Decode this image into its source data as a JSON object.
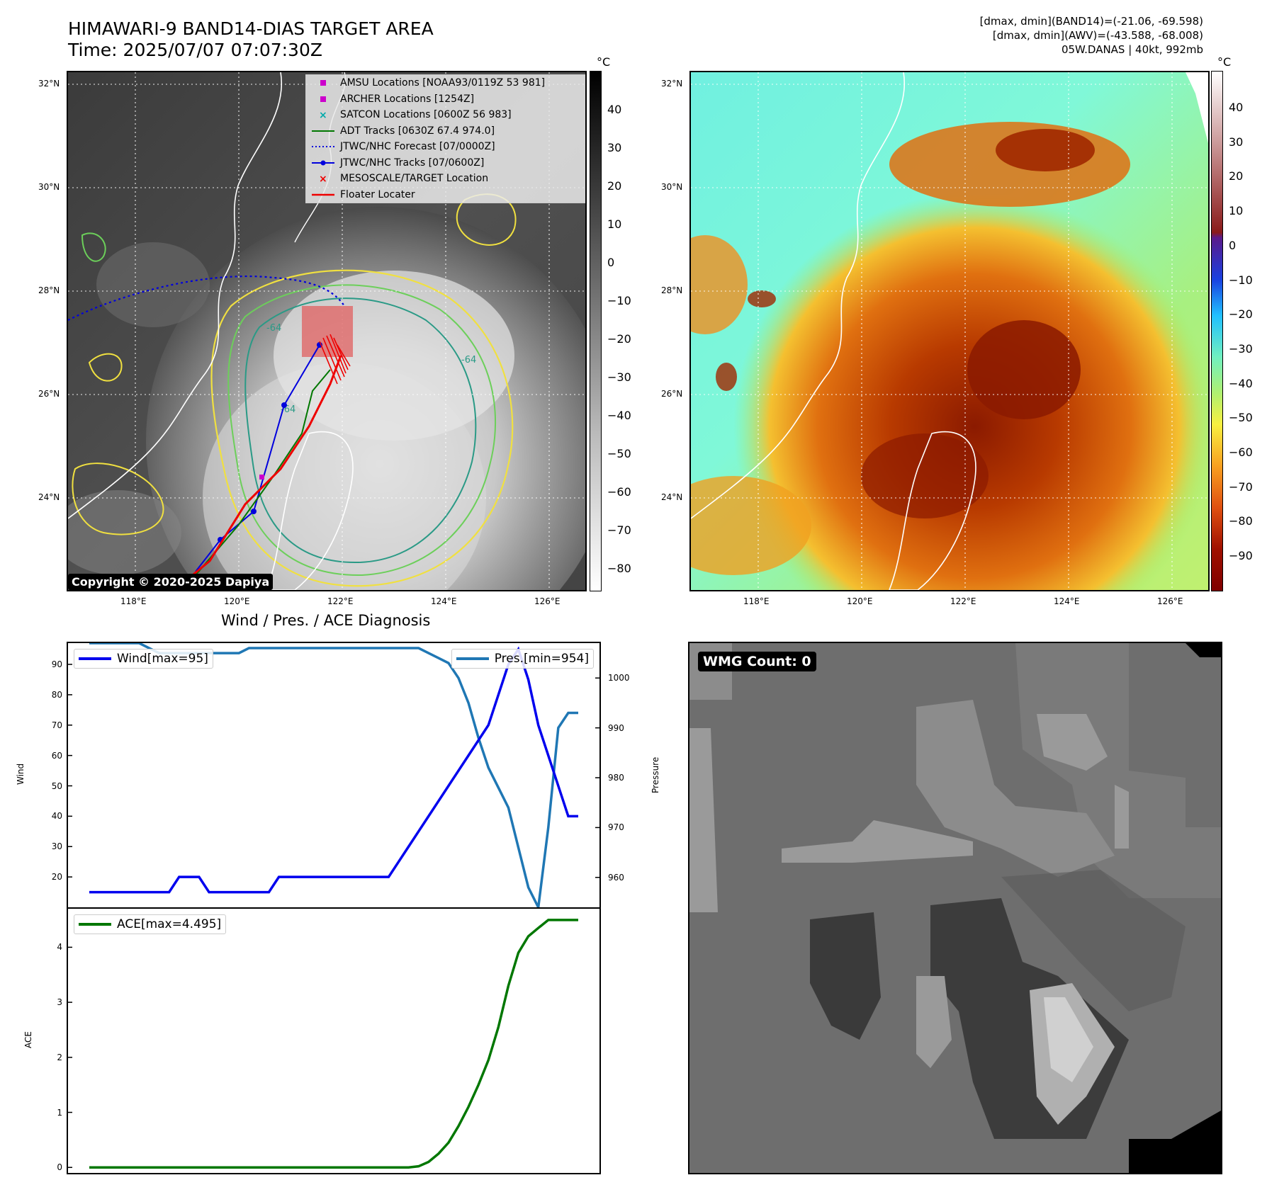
{
  "header": {
    "title_line1": "HIMAWARI-9 BAND14-DIAS TARGET AREA",
    "title_line2": "Time: 2025/07/07 07:07:30Z",
    "meta_line1": "[dmax, dmin](BAND14)=(-21.06, -69.598)",
    "meta_line2": "[dmax, dmin](AWV)=(-43.588, -68.008)",
    "meta_line3": "05W.DANAS | 40kt, 992mb"
  },
  "map": {
    "lat_labels": [
      "32°N",
      "30°N",
      "28°N",
      "26°N",
      "24°N"
    ],
    "lon_labels": [
      "118°E",
      "120°E",
      "122°E",
      "124°E",
      "126°E"
    ],
    "legend": [
      {
        "label": "AMSU Locations [NOAA93/0119Z 53 981]",
        "symbol": "square",
        "color": "#cc00cc"
      },
      {
        "label": "ARCHER Locations [1254Z]",
        "symbol": "square",
        "color": "#cc00cc"
      },
      {
        "label": "SATCON Locations [0600Z 56 983]",
        "symbol": "x",
        "color": "#00aaaa"
      },
      {
        "label": "ADT Tracks [0630Z 67.4 974.0]",
        "symbol": "line",
        "color": "#007700"
      },
      {
        "label": "JTWC/NHC Forecast [07/0000Z]",
        "symbol": "dotted",
        "color": "#0000dd"
      },
      {
        "label": "JTWC/NHC Tracks [07/0600Z]",
        "symbol": "line-dot",
        "color": "#0000dd"
      },
      {
        "label": "MESOSCALE/TARGET Location",
        "symbol": "x",
        "color": "#ee0000"
      },
      {
        "label": "Floater Locater",
        "symbol": "line",
        "color": "#ee0000"
      }
    ],
    "copyright": "Copyright © 2020-2025 Dapiya",
    "contour_labels": [
      "-64",
      "-64",
      "-64"
    ],
    "colorbar_left": {
      "unit": "°C",
      "ticks": [
        "40",
        "30",
        "20",
        "10",
        "0",
        "−10",
        "−20",
        "−30",
        "−40",
        "−50",
        "−60",
        "−70",
        "−80"
      ]
    },
    "colorbar_right": {
      "unit": "°C",
      "ticks": [
        "40",
        "30",
        "20",
        "10",
        "0",
        "−10",
        "−20",
        "−30",
        "−40",
        "−50",
        "−60",
        "−70",
        "−80",
        "−90"
      ]
    }
  },
  "diagnosis": {
    "title": "Wind / Pres. / ACE Diagnosis",
    "wind_label": "Wind",
    "pressure_label": "Pressure",
    "ace_label": "ACE",
    "wind_legend": "Wind[max=95]",
    "pres_legend": "Pres.[min=954]",
    "ace_legend": "ACE[max=4.495]",
    "wind_color": "#0000ee",
    "pres_color": "#1f77b4",
    "ace_color": "#007700"
  },
  "chart_data": [
    {
      "type": "line",
      "title": "Wind / Pres. / ACE Diagnosis",
      "ylabel": "Wind",
      "y2label": "Pressure",
      "ylim": [
        10,
        97
      ],
      "y2lim": [
        954,
        1007
      ],
      "yticks": [
        20,
        30,
        40,
        50,
        60,
        70,
        80,
        90
      ],
      "y2ticks": [
        960,
        970,
        980,
        990,
        1000
      ],
      "x": [
        0,
        1,
        2,
        3,
        4,
        5,
        6,
        7,
        8,
        9,
        10,
        11,
        12,
        13,
        14,
        15,
        16,
        17,
        18,
        19,
        20,
        21,
        22,
        23,
        24,
        25,
        26,
        27,
        28,
        29,
        30,
        31,
        32,
        33,
        34,
        35,
        36,
        37,
        38,
        39,
        40,
        41,
        42,
        43,
        44,
        45,
        46,
        47,
        48,
        49
      ],
      "series": [
        {
          "name": "Wind[max=95]",
          "axis": "left",
          "values": [
            15,
            15,
            15,
            15,
            15,
            15,
            15,
            15,
            15,
            20,
            20,
            20,
            15,
            15,
            15,
            15,
            15,
            15,
            15,
            20,
            20,
            20,
            20,
            20,
            20,
            20,
            20,
            20,
            20,
            20,
            20,
            25,
            30,
            35,
            40,
            45,
            50,
            55,
            60,
            65,
            70,
            80,
            90,
            95,
            85,
            70,
            60,
            50,
            40,
            40
          ]
        },
        {
          "name": "Pres.[min=954]",
          "axis": "right",
          "values": [
            1007,
            1007,
            1007,
            1007,
            1007,
            1007,
            1006,
            1005,
            1005,
            1005,
            1005,
            1005,
            1005,
            1005,
            1005,
            1005,
            1006,
            1006,
            1006,
            1006,
            1006,
            1006,
            1006,
            1006,
            1006,
            1006,
            1006,
            1006,
            1006,
            1006,
            1006,
            1006,
            1006,
            1006,
            1005,
            1004,
            1003,
            1000,
            995,
            988,
            982,
            978,
            974,
            966,
            958,
            954,
            970,
            990,
            993,
            993
          ]
        }
      ]
    },
    {
      "type": "line",
      "ylabel": "ACE",
      "ylim": [
        -0.1,
        4.7
      ],
      "yticks": [
        0,
        1,
        2,
        3,
        4
      ],
      "x": [
        0,
        1,
        2,
        3,
        4,
        5,
        6,
        7,
        8,
        9,
        10,
        11,
        12,
        13,
        14,
        15,
        16,
        17,
        18,
        19,
        20,
        21,
        22,
        23,
        24,
        25,
        26,
        27,
        28,
        29,
        30,
        31,
        32,
        33,
        34,
        35,
        36,
        37,
        38,
        39,
        40,
        41,
        42,
        43,
        44,
        45,
        46,
        47,
        48,
        49
      ],
      "series": [
        {
          "name": "ACE[max=4.495]",
          "values": [
            0,
            0,
            0,
            0,
            0,
            0,
            0,
            0,
            0,
            0,
            0,
            0,
            0,
            0,
            0,
            0,
            0,
            0,
            0,
            0,
            0,
            0,
            0,
            0,
            0,
            0,
            0,
            0,
            0,
            0,
            0,
            0,
            0,
            0.02,
            0.1,
            0.25,
            0.45,
            0.75,
            1.1,
            1.5,
            1.95,
            2.55,
            3.3,
            3.9,
            4.2,
            4.35,
            4.495,
            4.495,
            4.495,
            4.495
          ]
        }
      ]
    }
  ],
  "wmg": {
    "label": "WMG Count: 0"
  }
}
